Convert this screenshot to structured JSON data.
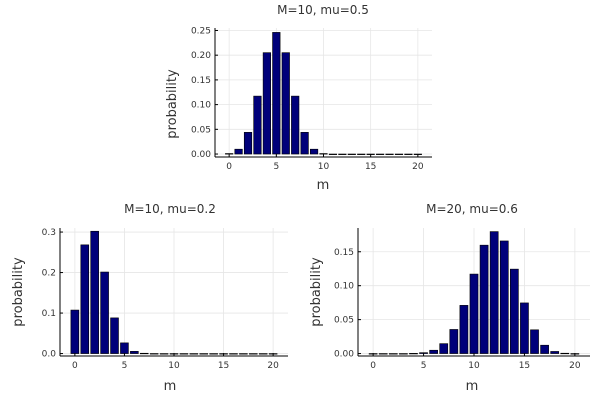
{
  "chart_data": [
    {
      "type": "bar",
      "title": "M=10, mu=0.5",
      "xlabel": "m",
      "ylabel": "probability",
      "xlim": [
        -1.5,
        21.5
      ],
      "ylim": [
        -0.006,
        0.255
      ],
      "xticks": [
        0,
        5,
        10,
        15,
        20
      ],
      "yticks": [
        0.0,
        0.05,
        0.1,
        0.15,
        0.2,
        0.25
      ],
      "ytick_labels": [
        "0.00",
        "0.05",
        "0.10",
        "0.15",
        "0.20",
        "0.25"
      ],
      "grid": true,
      "legend": "none",
      "x": [
        0,
        1,
        2,
        3,
        4,
        5,
        6,
        7,
        8,
        9,
        10,
        11,
        12,
        13,
        14,
        15,
        16,
        17,
        18,
        19,
        20
      ],
      "values": [
        0.001,
        0.0098,
        0.0439,
        0.1172,
        0.2051,
        0.2461,
        0.2051,
        0.1172,
        0.0439,
        0.0098,
        0.001,
        0,
        0,
        0,
        0,
        0,
        0,
        0,
        0,
        0,
        0
      ]
    },
    {
      "type": "bar",
      "title": "M=10, mu=0.2",
      "xlabel": "m",
      "ylabel": "probability",
      "xlim": [
        -1.5,
        21.5
      ],
      "ylim": [
        -0.006,
        0.31
      ],
      "xticks": [
        0,
        5,
        10,
        15,
        20
      ],
      "yticks": [
        0.0,
        0.1,
        0.2,
        0.3
      ],
      "ytick_labels": [
        "0.0",
        "0.1",
        "0.2",
        "0.3"
      ],
      "grid": true,
      "legend": "none",
      "x": [
        0,
        1,
        2,
        3,
        4,
        5,
        6,
        7,
        8,
        9,
        10,
        11,
        12,
        13,
        14,
        15,
        16,
        17,
        18,
        19,
        20
      ],
      "values": [
        0.1074,
        0.2684,
        0.302,
        0.2013,
        0.0881,
        0.0264,
        0.0055,
        0.0008,
        0.0001,
        0,
        0,
        0,
        0,
        0,
        0,
        0,
        0,
        0,
        0,
        0,
        0
      ]
    },
    {
      "type": "bar",
      "title": "M=20, mu=0.6",
      "xlabel": "m",
      "ylabel": "probability",
      "xlim": [
        -1.5,
        21.5
      ],
      "ylim": [
        -0.0036,
        0.185
      ],
      "xticks": [
        0,
        5,
        10,
        15,
        20
      ],
      "yticks": [
        0.0,
        0.05,
        0.1,
        0.15
      ],
      "ytick_labels": [
        "0.00",
        "0.05",
        "0.10",
        "0.15"
      ],
      "grid": true,
      "legend": "none",
      "x": [
        0,
        1,
        2,
        3,
        4,
        5,
        6,
        7,
        8,
        9,
        10,
        11,
        12,
        13,
        14,
        15,
        16,
        17,
        18,
        19,
        20
      ],
      "values": [
        0,
        0,
        0,
        0,
        0.0003,
        0.0013,
        0.0049,
        0.0146,
        0.0355,
        0.071,
        0.1171,
        0.1597,
        0.1797,
        0.1659,
        0.1244,
        0.0746,
        0.035,
        0.0123,
        0.0031,
        0.0005,
        0
      ]
    }
  ]
}
